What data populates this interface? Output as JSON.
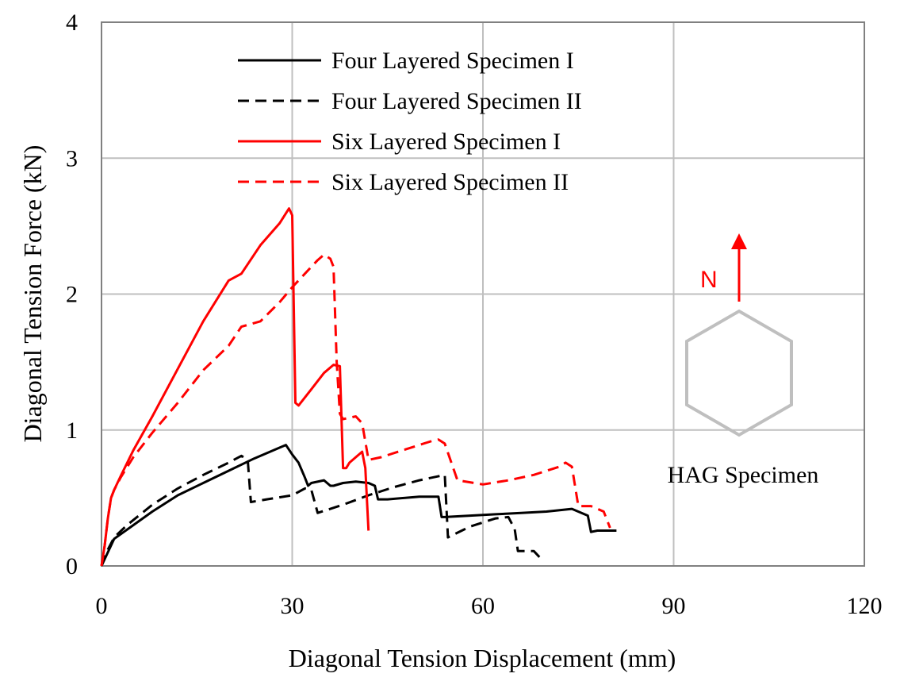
{
  "chart_data": {
    "type": "line",
    "xlabel": "Diagonal  Tension  Displacement  (mm)",
    "ylabel": "Diagonal  Tension Force (kN)",
    "xlim": [
      0,
      120
    ],
    "ylim": [
      0,
      4
    ],
    "xticks": [
      0,
      30,
      60,
      90,
      120
    ],
    "yticks": [
      0,
      1,
      2,
      3,
      4
    ],
    "grid": true,
    "legend_position": "top-center",
    "series": [
      {
        "name": "Four Layered Specimen I",
        "color": "#000000",
        "dash": "solid",
        "x": [
          0,
          1,
          2,
          5,
          8,
          12,
          16,
          20,
          24,
          28,
          29,
          30,
          31,
          32,
          32.5,
          33,
          35,
          36,
          36.5,
          38,
          40,
          42,
          43,
          43.5,
          45,
          50,
          53,
          53.5,
          54,
          58,
          62,
          66,
          70,
          74,
          76.5,
          77,
          78,
          80,
          81
        ],
        "y": [
          0,
          0.1,
          0.2,
          0.3,
          0.4,
          0.52,
          0.61,
          0.7,
          0.79,
          0.87,
          0.89,
          0.82,
          0.76,
          0.65,
          0.59,
          0.61,
          0.63,
          0.59,
          0.59,
          0.61,
          0.62,
          0.61,
          0.59,
          0.49,
          0.49,
          0.51,
          0.51,
          0.36,
          0.36,
          0.37,
          0.38,
          0.39,
          0.4,
          0.42,
          0.37,
          0.25,
          0.26,
          0.26,
          0.26
        ]
      },
      {
        "name": "Four Layered Specimen II",
        "color": "#000000",
        "dash": "dashed",
        "x": [
          0,
          1,
          2,
          4,
          8,
          12,
          16,
          20,
          22,
          23,
          23.5,
          26,
          30,
          32,
          33,
          34,
          38,
          42,
          46,
          50,
          54,
          54.5,
          58,
          62,
          64,
          65,
          65.5,
          68,
          69
        ],
        "y": [
          0,
          0.12,
          0.21,
          0.3,
          0.45,
          0.57,
          0.67,
          0.76,
          0.81,
          0.78,
          0.47,
          0.49,
          0.52,
          0.57,
          0.56,
          0.39,
          0.45,
          0.52,
          0.58,
          0.63,
          0.67,
          0.21,
          0.29,
          0.35,
          0.36,
          0.27,
          0.11,
          0.11,
          0.06
        ]
      },
      {
        "name": "Six Layered Specimen I",
        "color": "#ff0000",
        "dash": "solid",
        "x": [
          0,
          0.5,
          1,
          1.5,
          2,
          3,
          5,
          8,
          12,
          16,
          20,
          22,
          25,
          28,
          29.5,
          30,
          30.5,
          31,
          33,
          35,
          36.5,
          37.5,
          38,
          38.5,
          39,
          40,
          41,
          41.5,
          42
        ],
        "y": [
          0,
          0.15,
          0.35,
          0.5,
          0.56,
          0.66,
          0.85,
          1.1,
          1.45,
          1.8,
          2.1,
          2.15,
          2.36,
          2.52,
          2.63,
          2.58,
          1.2,
          1.18,
          1.3,
          1.42,
          1.48,
          1.47,
          0.72,
          0.72,
          0.76,
          0.8,
          0.84,
          0.72,
          0.26
        ]
      },
      {
        "name": "Six Layered Specimen II",
        "color": "#ff0000",
        "dash": "dashed",
        "x": [
          0,
          0.5,
          1,
          1.5,
          2,
          3,
          5,
          8,
          12,
          16,
          20,
          22,
          25,
          28,
          30,
          32,
          34,
          35,
          36,
          36.5,
          37,
          37.5,
          38,
          40,
          41,
          42,
          44,
          48,
          52,
          53,
          54,
          56,
          60,
          64,
          68,
          72,
          73,
          74,
          75,
          77,
          79,
          80
        ],
        "y": [
          0,
          0.15,
          0.35,
          0.5,
          0.56,
          0.65,
          0.8,
          0.98,
          1.2,
          1.44,
          1.62,
          1.76,
          1.8,
          1.94,
          2.05,
          2.15,
          2.25,
          2.29,
          2.26,
          2.2,
          1.5,
          1.12,
          1.08,
          1.1,
          1.05,
          0.78,
          0.8,
          0.86,
          0.92,
          0.93,
          0.9,
          0.63,
          0.6,
          0.63,
          0.67,
          0.73,
          0.76,
          0.73,
          0.44,
          0.44,
          0.4,
          0.28
        ]
      }
    ]
  },
  "annotations": {
    "specimen_label": "HAG Specimen",
    "north_label": "N",
    "accent_color": "#ff0000",
    "hexagon_color": "#bfbfbf"
  }
}
